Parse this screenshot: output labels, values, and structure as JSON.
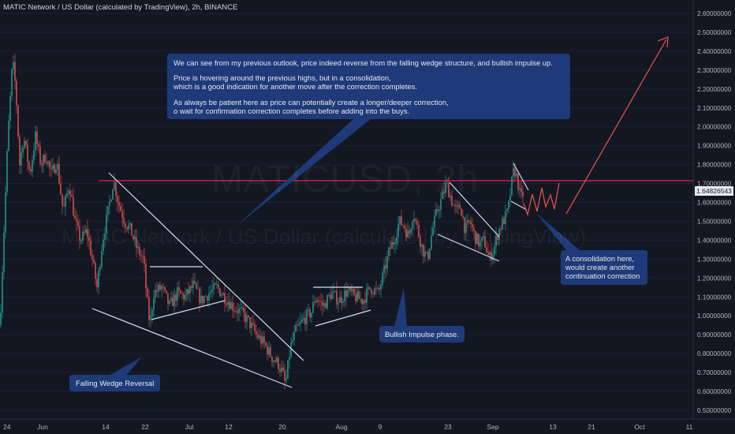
{
  "header": {
    "title": "MATIC Network / US Dollar (calculated by TradingView), 2h, BINANCE"
  },
  "watermark": {
    "big": "MATICUSD, 2h",
    "small": "MATIC Network / US Dollar (calculated by TradingView)"
  },
  "notes": {
    "main": [
      "We can see from my previous outlook, price indeed reverse from the falling wedge structure, and bullish impulse up.",
      "Price is hovering around the previous highs, but in a consolidation,\nwhich is a good indication for another move after the correction completes.",
      "As always be patient here as price can potentially create a longer/deeper correction,\no wait for confirmation correction completes before adding into the buys."
    ],
    "wedge": "Falling Wedge Reversal",
    "impulse": "Bullish Impulse phase.",
    "consolidation": "A consolidation here,\nwould create another\ncontinuation correction"
  },
  "colors": {
    "background": "#131722",
    "up": "#26a69a",
    "down": "#ef5350",
    "resistance": "#e91e63",
    "annotation": "#1e3a78",
    "drawing": "#d4dcf7"
  },
  "chart_data": {
    "type": "candlestick",
    "symbol": "MATICUSD",
    "interval": "2h",
    "exchange": "BINANCE",
    "last_price": "1.64826543",
    "y_ticks": [
      "2.60000000",
      "2.50000000",
      "2.40000000",
      "2.30000000",
      "2.20000000",
      "2.10000000",
      "2.00000000",
      "1.90000000",
      "1.80000000",
      "1.70000000",
      "1.60000000",
      "1.50000000",
      "1.40000000",
      "1.30000000",
      "1.20000000",
      "1.10000000",
      "1.00000000",
      "0.90000000",
      "0.80000000",
      "0.70000000",
      "0.60000000",
      "0.50000000"
    ],
    "ylim": [
      0.45,
      2.66
    ],
    "x_ticks": [
      "24",
      "Jun",
      "14",
      "22",
      "Jul",
      "12",
      "20",
      "Aug",
      "9",
      "23",
      "Sep",
      "13",
      "21",
      "Oct",
      "11"
    ],
    "resistance_level": 1.715,
    "price_path": [
      [
        0,
        0.95
      ],
      [
        5,
        1.45
      ],
      [
        10,
        1.95
      ],
      [
        16,
        2.35
      ],
      [
        20,
        2.2
      ],
      [
        25,
        1.8
      ],
      [
        30,
        1.95
      ],
      [
        38,
        1.75
      ],
      [
        45,
        1.95
      ],
      [
        52,
        1.8
      ],
      [
        58,
        1.85
      ],
      [
        65,
        1.75
      ],
      [
        72,
        1.82
      ],
      [
        80,
        1.55
      ],
      [
        88,
        1.7
      ],
      [
        95,
        1.5
      ],
      [
        102,
        1.4
      ],
      [
        110,
        1.45
      ],
      [
        117,
        1.3
      ],
      [
        123,
        1.15
      ],
      [
        130,
        1.4
      ],
      [
        137,
        1.55
      ],
      [
        144,
        1.72
      ],
      [
        150,
        1.6
      ],
      [
        158,
        1.5
      ],
      [
        166,
        1.45
      ],
      [
        174,
        1.35
      ],
      [
        182,
        1.3
      ],
      [
        186,
        1.1
      ],
      [
        190,
        0.95
      ],
      [
        195,
        1.12
      ],
      [
        205,
        1.15
      ],
      [
        215,
        1.05
      ],
      [
        225,
        1.12
      ],
      [
        235,
        1.1
      ],
      [
        245,
        1.16
      ],
      [
        255,
        1.08
      ],
      [
        265,
        1.12
      ],
      [
        275,
        1.15
      ],
      [
        285,
        1.1
      ],
      [
        295,
        1.05
      ],
      [
        305,
        1.02
      ],
      [
        315,
        0.97
      ],
      [
        325,
        0.9
      ],
      [
        335,
        0.85
      ],
      [
        345,
        0.78
      ],
      [
        352,
        0.75
      ],
      [
        358,
        0.7
      ],
      [
        362,
        0.63
      ],
      [
        368,
        0.83
      ],
      [
        375,
        0.92
      ],
      [
        385,
        0.98
      ],
      [
        395,
        1.02
      ],
      [
        400,
        1.1
      ],
      [
        410,
        1.05
      ],
      [
        420,
        1.12
      ],
      [
        430,
        1.08
      ],
      [
        440,
        1.13
      ],
      [
        450,
        1.1
      ],
      [
        460,
        1.08
      ],
      [
        470,
        1.15
      ],
      [
        480,
        1.12
      ],
      [
        488,
        1.25
      ],
      [
        494,
        1.35
      ],
      [
        500,
        1.4
      ],
      [
        506,
        1.5
      ],
      [
        512,
        1.48
      ],
      [
        518,
        1.42
      ],
      [
        524,
        1.55
      ],
      [
        530,
        1.45
      ],
      [
        536,
        1.35
      ],
      [
        542,
        1.3
      ],
      [
        548,
        1.45
      ],
      [
        554,
        1.55
      ],
      [
        560,
        1.62
      ],
      [
        566,
        1.7
      ],
      [
        572,
        1.62
      ],
      [
        578,
        1.55
      ],
      [
        584,
        1.58
      ],
      [
        590,
        1.45
      ],
      [
        596,
        1.5
      ],
      [
        602,
        1.42
      ],
      [
        608,
        1.38
      ],
      [
        614,
        1.4
      ],
      [
        620,
        1.3
      ],
      [
        626,
        1.35
      ],
      [
        632,
        1.45
      ],
      [
        638,
        1.5
      ],
      [
        644,
        1.55
      ],
      [
        648,
        1.68
      ],
      [
        652,
        1.78
      ],
      [
        656,
        1.72
      ],
      [
        660,
        1.62
      ],
      [
        664,
        1.65
      ]
    ]
  }
}
